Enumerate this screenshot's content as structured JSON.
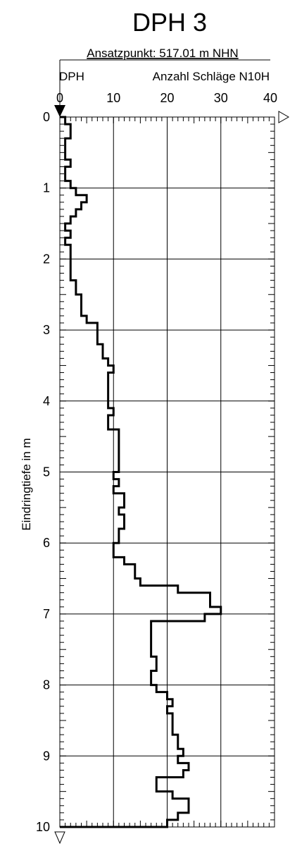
{
  "chart_data": {
    "type": "line",
    "title": "DPH 3",
    "subtitle": "Ansatzpunkt: 517.01 m NHN",
    "probe_label": "DPH",
    "xlabel": "Anzahl Schläge N10H",
    "ylabel": "Eindringtiefe in m",
    "xlim": [
      0,
      40
    ],
    "ylim": [
      0,
      10
    ],
    "x_ticks": [
      "0",
      "10",
      "20",
      "30",
      "40"
    ],
    "y_ticks": [
      "0",
      "1",
      "2",
      "3",
      "4",
      "5",
      "6",
      "7",
      "8",
      "9",
      "10"
    ],
    "grid": true,
    "series": [
      {
        "depth_from": [
          0.0,
          0.1,
          0.2,
          0.3,
          0.4,
          0.5,
          0.6,
          0.7,
          0.8,
          0.9,
          1.0,
          1.1,
          1.2,
          1.3,
          1.4,
          1.5,
          1.6,
          1.7,
          1.8,
          1.9,
          2.0,
          2.1,
          2.2,
          2.3,
          2.4,
          2.5,
          2.6,
          2.7,
          2.8,
          2.9,
          3.0,
          3.1,
          3.2,
          3.3,
          3.4,
          3.5,
          3.6,
          3.7,
          3.8,
          3.9,
          4.0,
          4.1,
          4.2,
          4.3,
          4.4,
          4.5,
          4.6,
          4.7,
          4.8,
          4.9,
          5.0,
          5.1,
          5.2,
          5.3,
          5.4,
          5.5,
          5.6,
          5.7,
          5.8,
          5.9,
          6.0,
          6.1,
          6.2,
          6.3,
          6.4,
          6.5,
          6.6,
          6.7,
          6.8,
          6.9,
          7.0,
          7.1,
          7.2,
          7.3,
          7.4,
          7.5,
          7.6,
          7.7,
          7.8,
          7.9,
          8.0,
          8.1,
          8.2,
          8.3,
          8.4,
          8.5,
          8.6,
          8.7,
          8.8,
          8.9,
          9.0,
          9.1,
          9.2,
          9.3,
          9.4,
          9.5,
          9.6,
          9.7,
          9.8,
          9.9
        ],
        "blows": [
          1,
          2,
          2,
          1,
          1,
          1,
          2,
          1,
          1,
          2,
          3,
          5,
          4,
          3,
          2,
          1,
          2,
          1,
          2,
          2,
          2,
          2,
          2,
          3,
          3,
          4,
          4,
          4,
          5,
          7,
          7,
          7,
          8,
          8,
          9,
          10,
          9,
          9,
          9,
          9,
          9,
          10,
          9,
          9,
          11,
          11,
          11,
          11,
          11,
          11,
          10,
          11,
          10,
          12,
          12,
          11,
          12,
          12,
          11,
          11,
          10,
          10,
          12,
          14,
          14,
          15,
          22,
          28,
          28,
          30,
          27,
          17,
          17,
          17,
          17,
          17,
          18,
          18,
          17,
          17,
          18,
          20,
          21,
          20,
          21,
          21,
          21,
          22,
          22,
          23,
          22,
          24,
          23,
          18,
          18,
          21,
          24,
          24,
          22,
          20
        ]
      }
    ]
  }
}
